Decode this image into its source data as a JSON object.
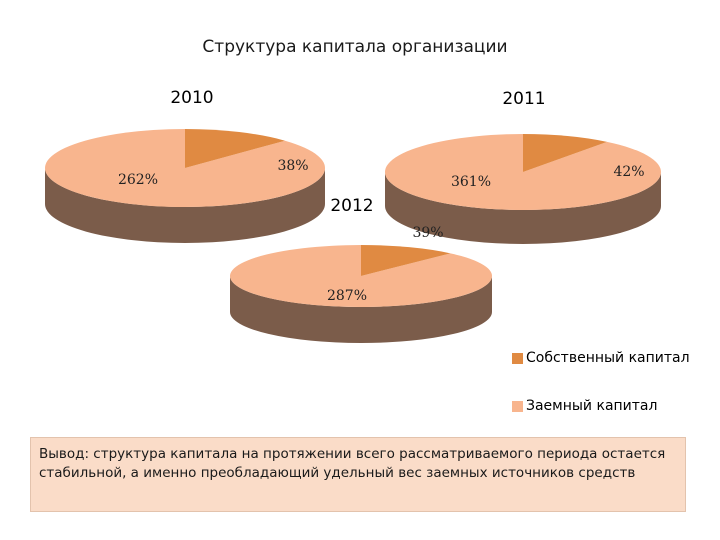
{
  "chart_data": {
    "type": "pie",
    "title": "Структура капитала организации",
    "series_names": [
      "Собственный капитал",
      "Заемный капитал"
    ],
    "colors": {
      "own_top": "#e08a42",
      "own_side": "#6f4320",
      "debt_top": "#f8b58e",
      "debt_side": "#7b5c4a"
    },
    "pies": [
      {
        "year": "2010",
        "own_label": "38%",
        "debt_label": "262%",
        "own_value": 38,
        "debt_value": 262
      },
      {
        "year": "2011",
        "own_label": "42%",
        "debt_label": "361%",
        "own_value": 42,
        "debt_value": 361
      },
      {
        "year": "2012",
        "own_label": "39%",
        "debt_label": "287%",
        "own_value": 39,
        "debt_value": 287
      }
    ]
  },
  "conclusion": "Вывод: структура капитала на протяжении всего рассматриваемого периода остается стабильной, а именно преобладающий удельный вес заемных источников средств"
}
